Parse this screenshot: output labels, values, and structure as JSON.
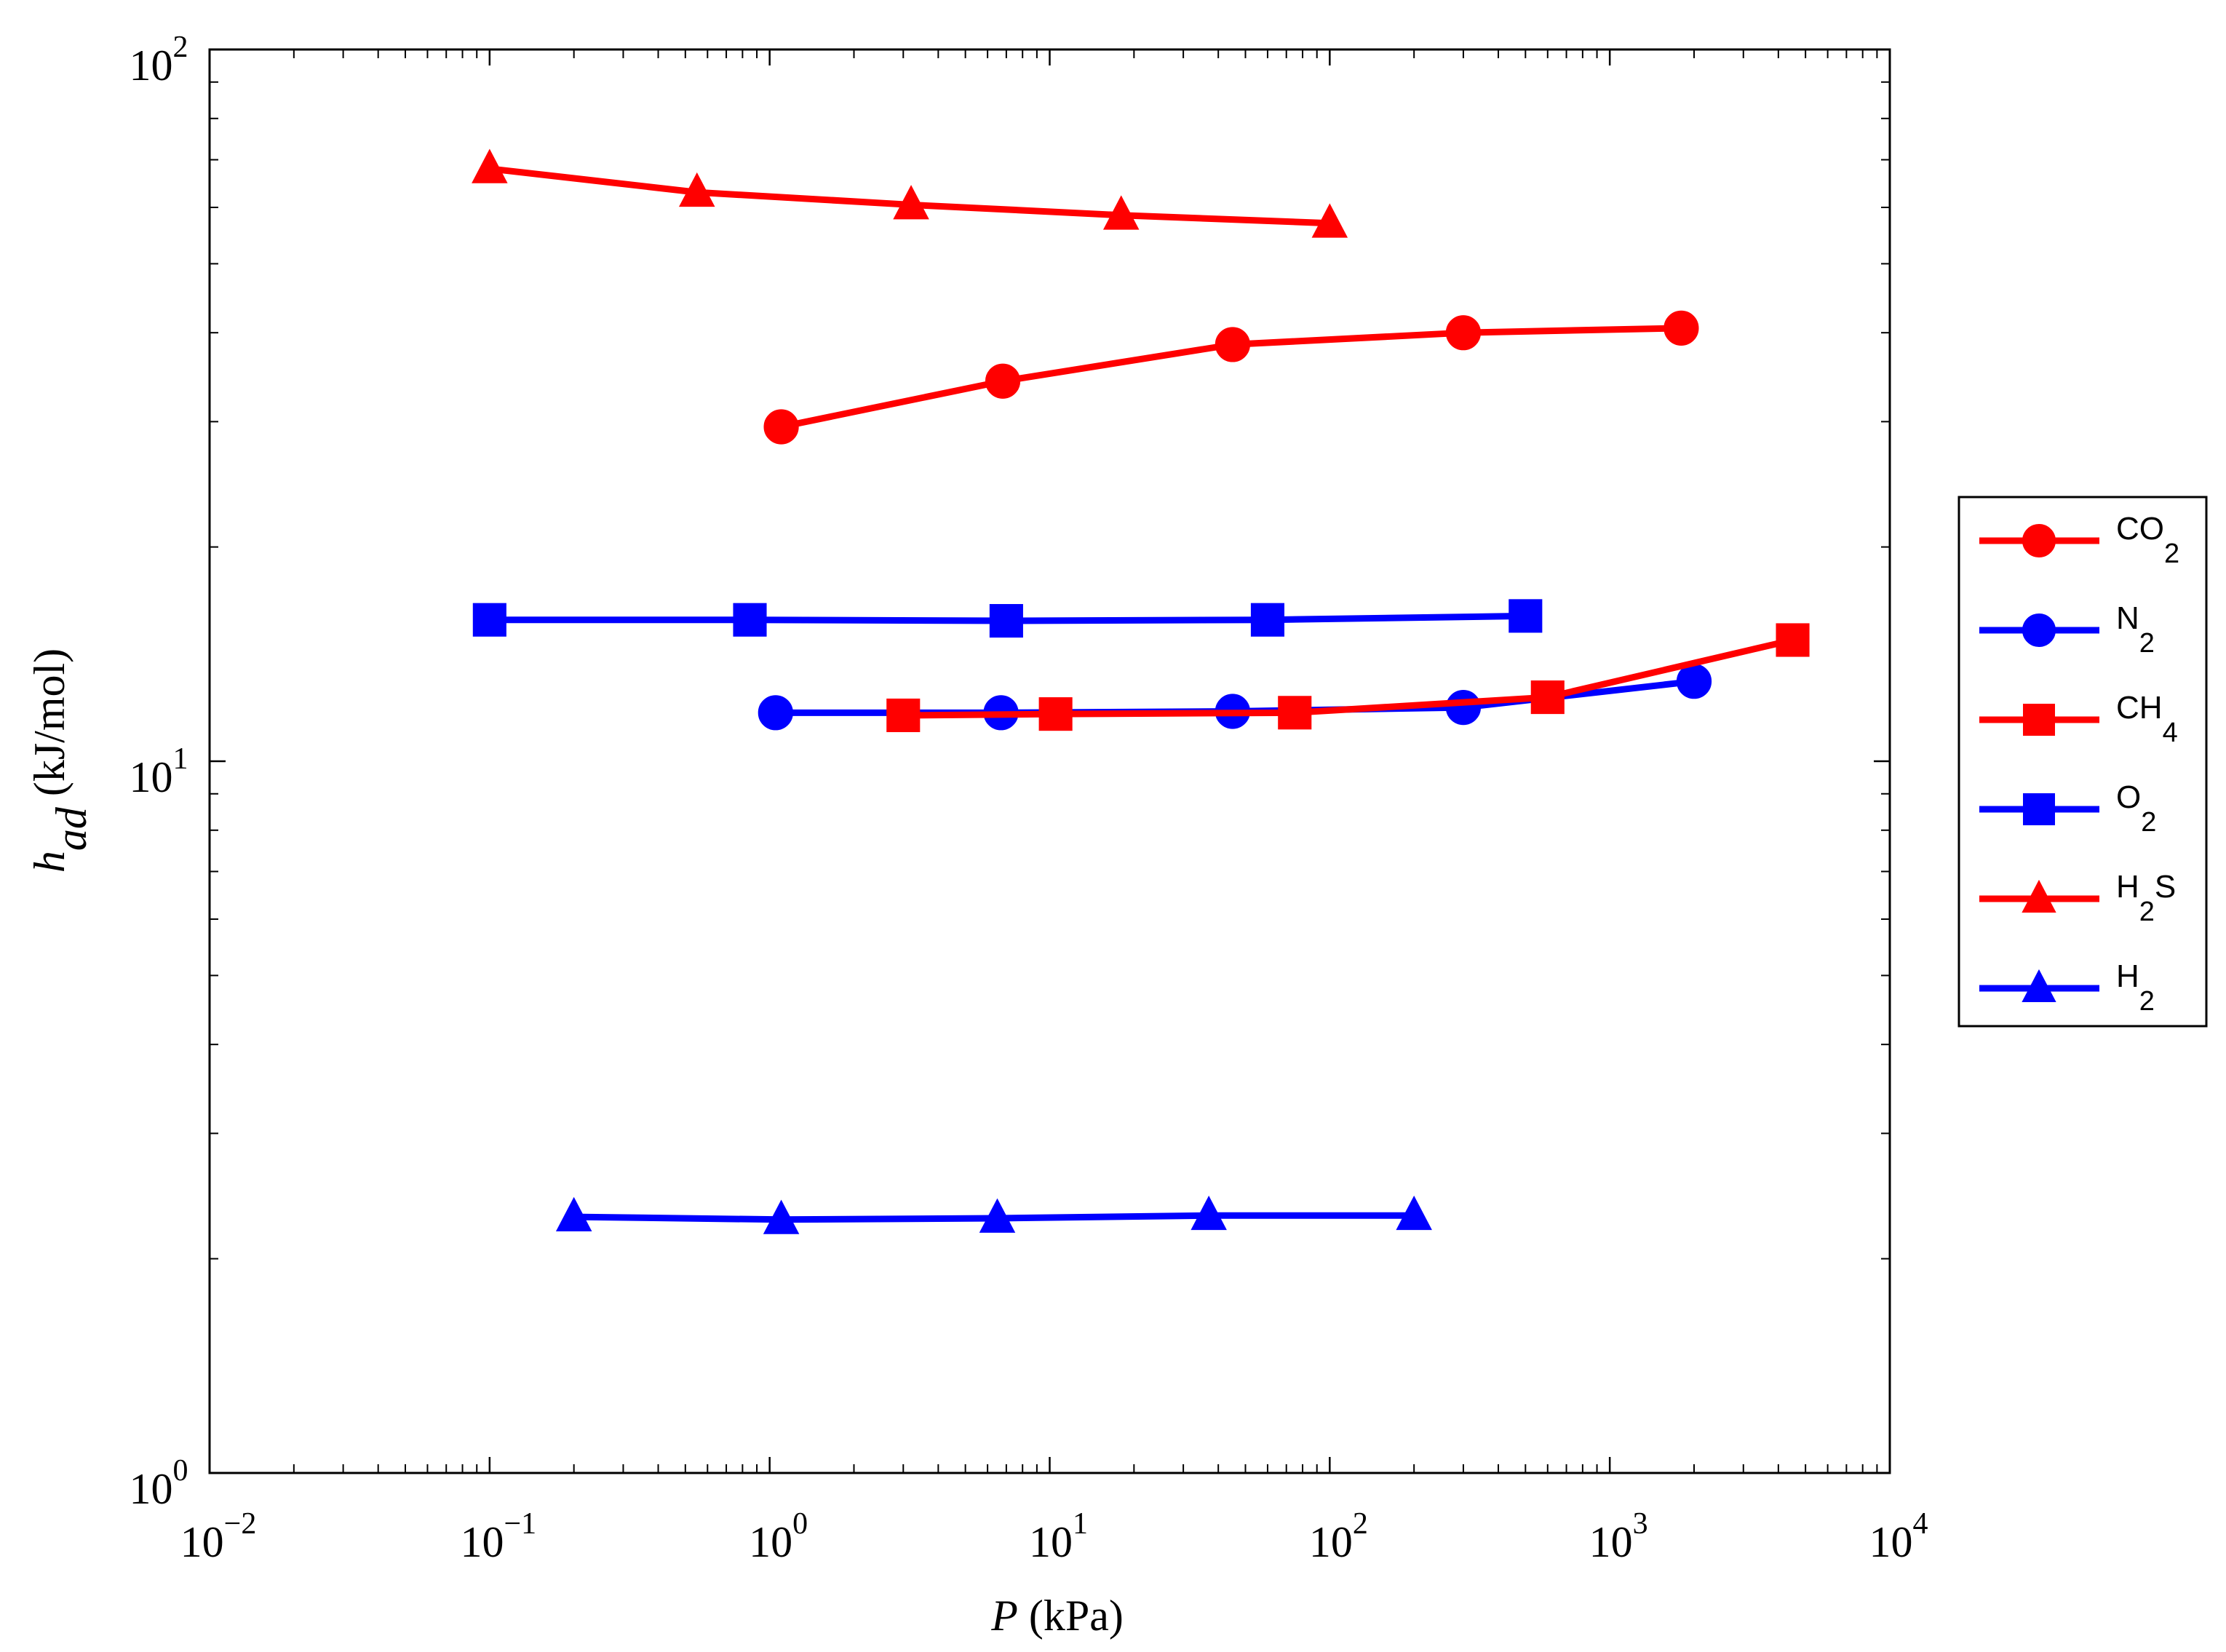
{
  "chart_data": {
    "type": "line",
    "x_scale": "log",
    "y_scale": "log",
    "xlim": [
      0.01,
      10000
    ],
    "ylim": [
      1,
      100
    ],
    "x_ticks": [
      {
        "base": "10",
        "exp": "−2",
        "value": 0.01
      },
      {
        "base": "10",
        "exp": "−1",
        "value": 0.1
      },
      {
        "base": "10",
        "exp": "0",
        "value": 1
      },
      {
        "base": "10",
        "exp": "1",
        "value": 10
      },
      {
        "base": "10",
        "exp": "2",
        "value": 100
      },
      {
        "base": "10",
        "exp": "3",
        "value": 1000
      },
      {
        "base": "10",
        "exp": "4",
        "value": 10000
      }
    ],
    "y_ticks": [
      {
        "base": "10",
        "exp": "0",
        "value": 1
      },
      {
        "base": "10",
        "exp": "1",
        "value": 10
      },
      {
        "base": "10",
        "exp": "2",
        "value": 100
      }
    ],
    "xlabel": {
      "var": "P",
      "rest": " (kPa)"
    },
    "ylabel": {
      "var": "h",
      "sub": "ad",
      "rest": " (kJ/mol)"
    },
    "legend_position": "right",
    "grid": false,
    "series": [
      {
        "name": "CO",
        "name_sub": "2",
        "color": "#ff0000",
        "marker": "circle",
        "x": [
          1.1,
          6.8,
          45,
          300,
          1800
        ],
        "y": [
          29.5,
          34.2,
          38.5,
          40,
          40.6
        ]
      },
      {
        "name": "N",
        "name_sub": "2",
        "color": "#0000ff",
        "marker": "circle",
        "x": [
          1.05,
          6.7,
          45,
          300,
          2000
        ],
        "y": [
          11.7,
          11.7,
          11.75,
          11.9,
          12.95
        ]
      },
      {
        "name": "CH",
        "name_sub": "4",
        "color": "#ff0000",
        "marker": "square",
        "x": [
          3,
          10.5,
          75,
          600,
          4500
        ],
        "y": [
          11.6,
          11.65,
          11.7,
          12.3,
          14.8
        ]
      },
      {
        "name": "O",
        "name_sub": "2",
        "color": "#0000ff",
        "marker": "square",
        "x": [
          0.1,
          0.85,
          7,
          60,
          500
        ],
        "y": [
          15.8,
          15.8,
          15.75,
          15.8,
          16.0
        ]
      },
      {
        "name": "H",
        "name_sub": "2",
        "name_tail": "S",
        "color": "#ff0000",
        "marker": "triangle",
        "x": [
          0.1,
          0.55,
          3.2,
          18,
          100
        ],
        "y": [
          68,
          63,
          60.5,
          58.5,
          57
        ]
      },
      {
        "name": "H",
        "name_sub": "2",
        "color": "#0000ff",
        "marker": "triangle",
        "x": [
          0.2,
          1.1,
          6.5,
          37,
          200
        ],
        "y": [
          2.29,
          2.27,
          2.28,
          2.3,
          2.3
        ]
      }
    ]
  }
}
